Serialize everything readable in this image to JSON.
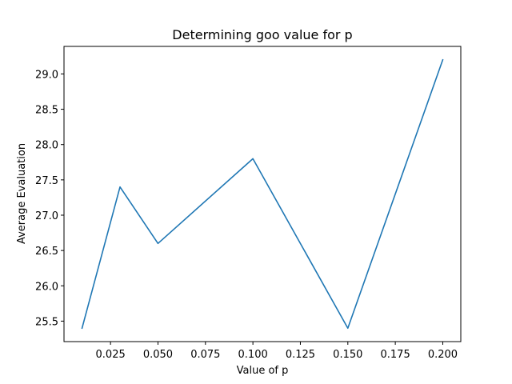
{
  "chart_data": {
    "type": "line",
    "title": "Determining goo value for p",
    "xlabel": "Value of p",
    "ylabel": "Average Evaluation",
    "xlim": [
      0.0005,
      0.2095
    ],
    "ylim": [
      25.21,
      29.39
    ],
    "xticks": [
      0.025,
      0.05,
      0.075,
      0.1,
      0.125,
      0.15,
      0.175,
      0.2
    ],
    "xtick_labels": [
      "0.025",
      "0.050",
      "0.075",
      "0.100",
      "0.125",
      "0.150",
      "0.175",
      "0.200"
    ],
    "yticks": [
      25.5,
      26.0,
      26.5,
      27.0,
      27.5,
      28.0,
      28.5,
      29.0
    ],
    "ytick_labels": [
      "25.5",
      "26.0",
      "26.5",
      "27.0",
      "27.5",
      "28.0",
      "28.5",
      "29.0"
    ],
    "grid": false,
    "series": [
      {
        "color": "#1f77b4",
        "x": [
          0.01,
          0.03,
          0.05,
          0.1,
          0.15,
          0.2
        ],
        "y": [
          25.4,
          27.4,
          26.6,
          27.8,
          25.4,
          29.2
        ]
      }
    ]
  }
}
